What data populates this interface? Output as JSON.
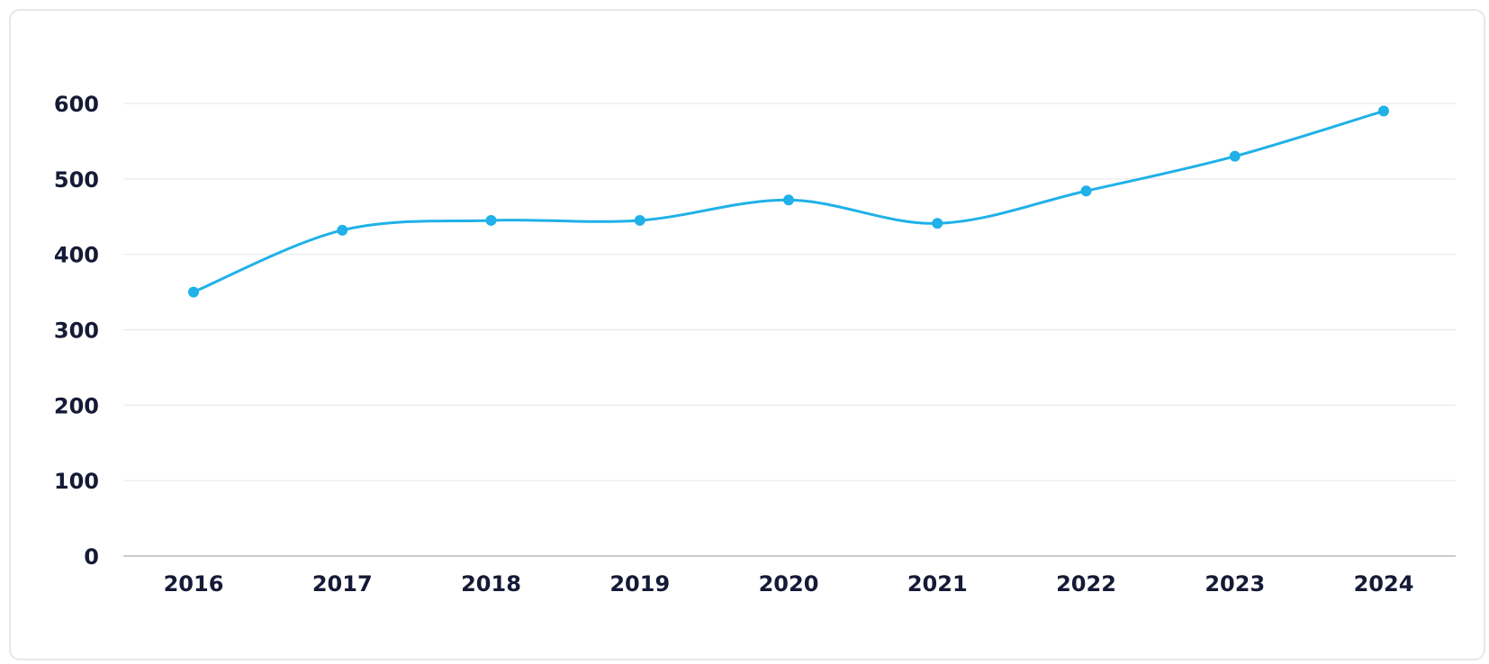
{
  "chart_data": {
    "type": "line",
    "title": "",
    "xlabel": "",
    "ylabel": "",
    "categories": [
      "2016",
      "2017",
      "2018",
      "2019",
      "2020",
      "2021",
      "2022",
      "2023",
      "2024"
    ],
    "series": [
      {
        "values": [
          350,
          432,
          445,
          445,
          472,
          441,
          484,
          530,
          590
        ]
      }
    ],
    "ylim": [
      0,
      600
    ],
    "yticks": [
      0,
      100,
      200,
      300,
      400,
      500,
      600
    ],
    "grid": true,
    "legend": "none",
    "colors": {
      "line": "#1fb1e8",
      "grid": "#e8e9ec",
      "axis": "#c9cbd1",
      "text": "#151a36"
    }
  }
}
